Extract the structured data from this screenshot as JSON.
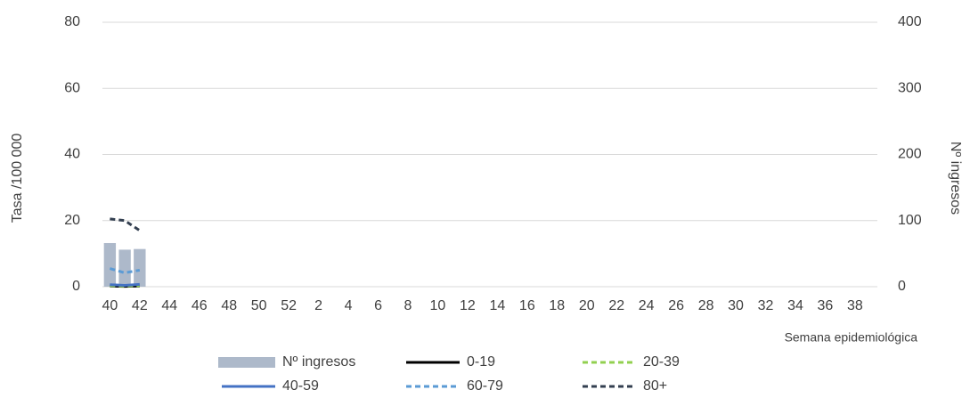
{
  "chart_data": {
    "type": "bar-line",
    "ylabel": "Tasa /100 000",
    "y2label": "Nº ingresos",
    "xlabel": "Semana epidemiológica",
    "categories": [
      "40",
      null,
      "42",
      null,
      "44",
      null,
      "46",
      null,
      "48",
      null,
      "50",
      null,
      "52",
      null,
      "2",
      null,
      "4",
      null,
      "6",
      null,
      "8",
      null,
      "10",
      null,
      "12",
      null,
      "14",
      null,
      "16",
      null,
      "18",
      null,
      "20",
      null,
      "22",
      null,
      "24",
      null,
      "26",
      null,
      "28",
      null,
      "30",
      null,
      "32",
      null,
      "34",
      null,
      "36",
      null,
      "38",
      null
    ],
    "series": [
      {
        "name": "Nº ingresos",
        "kind": "bar",
        "axis": "y2",
        "color": "#adb9ca",
        "values": [
          66,
          56,
          57,
          null,
          null,
          null,
          null,
          null,
          null,
          null,
          null,
          null,
          null,
          null,
          null,
          null,
          null,
          null,
          null,
          null,
          null,
          null,
          null,
          null,
          null,
          null,
          null,
          null,
          null,
          null,
          null,
          null,
          null,
          null,
          null,
          null,
          null,
          null,
          null,
          null,
          null,
          null,
          null,
          null,
          null,
          null,
          null,
          null,
          null,
          null,
          null,
          null
        ]
      },
      {
        "name": "0-19",
        "kind": "line",
        "color": "#000000",
        "dash": false,
        "values": [
          0.2,
          0.1,
          0.2,
          null,
          null,
          null,
          null,
          null,
          null,
          null,
          null,
          null,
          null,
          null,
          null,
          null,
          null,
          null,
          null,
          null,
          null,
          null,
          null,
          null,
          null,
          null,
          null,
          null,
          null,
          null,
          null,
          null,
          null,
          null,
          null,
          null,
          null,
          null,
          null,
          null,
          null,
          null,
          null,
          null,
          null,
          null,
          null,
          null,
          null,
          null,
          null,
          null
        ]
      },
      {
        "name": "20-39",
        "kind": "line",
        "color": "#92d050",
        "dash": true,
        "values": [
          0.3,
          0.2,
          0.3,
          null,
          null,
          null,
          null,
          null,
          null,
          null,
          null,
          null,
          null,
          null,
          null,
          null,
          null,
          null,
          null,
          null,
          null,
          null,
          null,
          null,
          null,
          null,
          null,
          null,
          null,
          null,
          null,
          null,
          null,
          null,
          null,
          null,
          null,
          null,
          null,
          null,
          null,
          null,
          null,
          null,
          null,
          null,
          null,
          null,
          null,
          null,
          null,
          null
        ]
      },
      {
        "name": "40-59",
        "kind": "line",
        "color": "#4472c4",
        "dash": false,
        "values": [
          0.6,
          0.4,
          0.7,
          null,
          null,
          null,
          null,
          null,
          null,
          null,
          null,
          null,
          null,
          null,
          null,
          null,
          null,
          null,
          null,
          null,
          null,
          null,
          null,
          null,
          null,
          null,
          null,
          null,
          null,
          null,
          null,
          null,
          null,
          null,
          null,
          null,
          null,
          null,
          null,
          null,
          null,
          null,
          null,
          null,
          null,
          null,
          null,
          null,
          null,
          null,
          null,
          null
        ]
      },
      {
        "name": "60-79",
        "kind": "line",
        "color": "#5b9bd5",
        "dash": true,
        "values": [
          5.5,
          4.2,
          5.0,
          null,
          null,
          null,
          null,
          null,
          null,
          null,
          null,
          null,
          null,
          null,
          null,
          null,
          null,
          null,
          null,
          null,
          null,
          null,
          null,
          null,
          null,
          null,
          null,
          null,
          null,
          null,
          null,
          null,
          null,
          null,
          null,
          null,
          null,
          null,
          null,
          null,
          null,
          null,
          null,
          null,
          null,
          null,
          null,
          null,
          null,
          null,
          null,
          null
        ]
      },
      {
        "name": "80+",
        "kind": "line",
        "color": "#333f50",
        "dash": true,
        "values": [
          20.5,
          20,
          17,
          null,
          null,
          null,
          null,
          null,
          null,
          null,
          null,
          null,
          null,
          null,
          null,
          null,
          null,
          null,
          null,
          null,
          null,
          null,
          null,
          null,
          null,
          null,
          null,
          null,
          null,
          null,
          null,
          null,
          null,
          null,
          null,
          null,
          null,
          null,
          null,
          null,
          null,
          null,
          null,
          null,
          null,
          null,
          null,
          null,
          null,
          null,
          null,
          null
        ]
      }
    ],
    "ylim": [
      0,
      80
    ],
    "yticks": [
      0,
      20,
      40,
      60,
      80
    ],
    "y2lim": [
      0,
      400
    ],
    "y2ticks": [
      0,
      100,
      200,
      300,
      400
    ],
    "grid": true
  }
}
